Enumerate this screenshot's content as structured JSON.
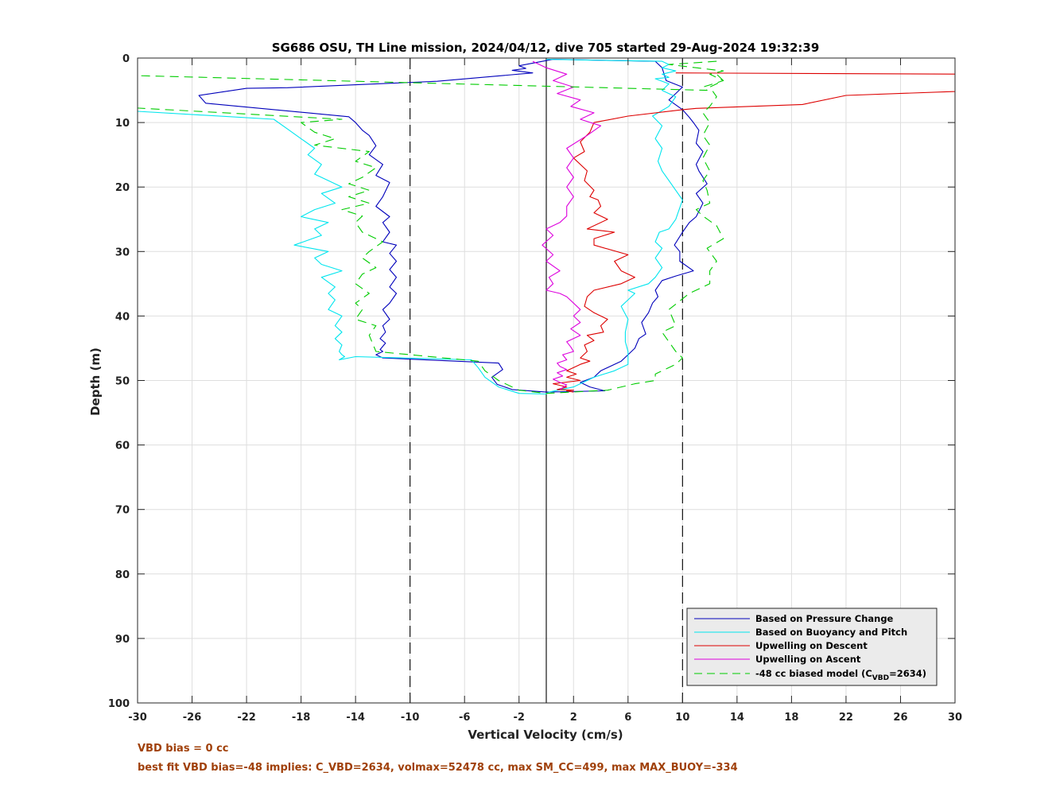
{
  "notes": {
    "line1": "VBD bias = 0 cc",
    "line2": "best fit VBD bias=-48 implies: C_VBD=2634, volmax=52478 cc, max SM_CC=499, max MAX_BUOY=-334"
  },
  "colors": {
    "note": "#a0400a"
  },
  "chart_data": {
    "type": "line",
    "title": "SG686 OSU, TH Line mission, 2024/04/12, dive 705 started 29-Aug-2024 19:32:39",
    "xlabel": "Vertical Velocity (cm/s)",
    "ylabel": "Depth (m)",
    "xlim": [
      -30,
      30
    ],
    "ylim": [
      0,
      100
    ],
    "y_reversed": true,
    "grid": true,
    "xticks": [
      -30,
      -26,
      -22,
      -18,
      -14,
      -10,
      -6,
      -2,
      2,
      6,
      10,
      14,
      18,
      22,
      26,
      30
    ],
    "yticks": [
      0,
      10,
      20,
      30,
      40,
      50,
      60,
      70,
      80,
      90,
      100
    ],
    "reference_lines": [
      {
        "x": -10,
        "style": "dashed",
        "color": "#000000"
      },
      {
        "x": 0,
        "style": "solid",
        "color": "#000000"
      },
      {
        "x": 10,
        "style": "dashed",
        "color": "#000000"
      }
    ],
    "legend": {
      "position": "bottom-right",
      "entries": [
        {
          "label": "Based on Pressure Change",
          "color": "#0000bb",
          "style": "solid"
        },
        {
          "label": "Based on Buoyancy and Pitch",
          "color": "#00e5ee",
          "style": "solid"
        },
        {
          "label": "Upwelling on Descent",
          "color": "#dd0000",
          "style": "solid"
        },
        {
          "label": "Upwelling on Ascent",
          "color": "#dd00dd",
          "style": "solid"
        },
        {
          "label_main": "-48 cc biased model (C",
          "label_sub": "VBD",
          "label_end": "=2634)",
          "color": "#00cc00",
          "style": "dashed"
        }
      ]
    },
    "series": [
      {
        "name": "Based on Pressure Change",
        "color": "#0000bb",
        "dash": false,
        "x": [
          0.5,
          -2.0,
          -1.5,
          -2.5,
          -1.0,
          -8.0,
          -19.0,
          -22.0,
          -25.5,
          -25.0,
          -14.5,
          -14.0,
          -13.5,
          -13.0,
          -12.5,
          -13.0,
          -12.0,
          -12.5,
          -11.5,
          -12.0,
          -12.5,
          -11.5,
          -12.0,
          -11.5,
          -12.0,
          -11.0,
          -11.5,
          -11.0,
          -11.5,
          -11.0,
          -11.5,
          -11.0,
          -11.5,
          -12.0,
          -11.5,
          -12.0,
          -11.8,
          -12.2,
          -11.8,
          -12.2,
          -12.0,
          -12.5,
          -12.0,
          -3.5,
          -3.2,
          -4.0,
          -3.6,
          -2.5,
          0.0,
          4.3,
          3.2,
          2.5,
          3.5,
          4.0,
          5.5,
          6.0,
          6.5,
          6.8,
          7.3,
          7.0,
          7.5,
          7.8,
          8.2,
          8.0,
          8.5,
          9.5,
          10.8,
          9.8,
          9.8,
          9.4,
          10.0,
          10.5,
          11.0,
          11.5,
          11.0,
          11.8,
          11.2,
          11.0,
          11.5,
          11.0,
          11.2,
          10.8,
          10.5,
          10.0,
          9.0,
          9.5,
          10.0,
          8.8,
          8.5,
          8.0,
          0.5
        ],
        "y": [
          0.2,
          1.2,
          1.6,
          1.9,
          2.3,
          3.6,
          4.6,
          4.7,
          5.8,
          7.0,
          9.1,
          10.0,
          11.2,
          12.0,
          13.6,
          15.0,
          16.5,
          18.2,
          19.3,
          21.5,
          23.0,
          24.6,
          25.5,
          27.0,
          28.5,
          29.0,
          30.3,
          31.5,
          32.8,
          34.0,
          35.5,
          36.5,
          38.0,
          39.0,
          40.5,
          41.5,
          42.5,
          43.5,
          44.2,
          45.2,
          45.5,
          46.0,
          46.5,
          47.3,
          48.3,
          49.5,
          50.6,
          51.4,
          51.8,
          51.6,
          51.0,
          50.3,
          49.5,
          48.5,
          47.0,
          46.0,
          45.0,
          43.5,
          42.8,
          41.0,
          39.5,
          38.0,
          37.0,
          36.0,
          34.5,
          33.8,
          33.0,
          31.5,
          30.0,
          29.0,
          27.0,
          25.5,
          24.6,
          22.5,
          21.0,
          19.5,
          17.5,
          16.5,
          14.5,
          13.2,
          11.2,
          10.0,
          9.2,
          8.0,
          6.5,
          5.5,
          4.5,
          3.5,
          1.5,
          0.5,
          0.2
        ]
      },
      {
        "name": "Based on Buoyancy and Pitch",
        "color": "#00e5ee",
        "dash": false,
        "x": [
          -30,
          -30.5,
          -30.5,
          -30.5,
          -20.0,
          -19.0,
          -18.0,
          -17.0,
          -17.5,
          -16.5,
          -17.0,
          -16.0,
          -15.0,
          -16.5,
          -15.5,
          -17.0,
          -18.0,
          -16.0,
          -17.0,
          -16.5,
          -18.5,
          -16.0,
          -17.0,
          -16.5,
          -15.0,
          -16.5,
          -15.5,
          -16.0,
          -15.5,
          -16.0,
          -15.0,
          -15.5,
          -15.0,
          -15.5,
          -15.0,
          -15.2,
          -15.0,
          -14.8,
          -15.2,
          -14.0,
          -5.5,
          -5.0,
          -4.5,
          -3.5,
          -2.0,
          0.0,
          0.2,
          2.0,
          3.5,
          5.0,
          6.0,
          6.0,
          5.8,
          5.8,
          6.0,
          5.5,
          6.5,
          6.0,
          7.5,
          8.0,
          8.5,
          8.0,
          8.5,
          8.0,
          8.3,
          9.0,
          9.5,
          10.0,
          9.5,
          9.0,
          8.5,
          8.2,
          8.5,
          8.0,
          8.5,
          7.8,
          9.0,
          9.5,
          8.5,
          9.0,
          8.0,
          9.0,
          8.5,
          9.5,
          8.5,
          9.0,
          8.5,
          0.0
        ],
        "y": [
          2.5,
          2.8,
          8.0,
          8.2,
          9.5,
          11.0,
          12.5,
          14.0,
          15.0,
          16.5,
          18.0,
          19.0,
          20.0,
          21.0,
          22.5,
          23.5,
          24.6,
          25.5,
          26.5,
          27.5,
          29.0,
          30.0,
          31.0,
          32.0,
          33.0,
          34.0,
          35.5,
          36.5,
          37.5,
          39.0,
          40.0,
          41.5,
          42.5,
          43.5,
          44.5,
          45.5,
          46.0,
          46.3,
          46.8,
          46.3,
          46.8,
          48.0,
          49.5,
          51.0,
          52.0,
          52.1,
          51.8,
          51.0,
          49.5,
          48.5,
          47.5,
          45.5,
          44.0,
          42.5,
          40.5,
          38.5,
          36.5,
          36.0,
          35.0,
          34.0,
          32.5,
          31.0,
          29.5,
          28.5,
          27.0,
          26.5,
          25.0,
          22.0,
          20.5,
          19.0,
          17.5,
          16.0,
          14.0,
          12.5,
          10.5,
          9.0,
          7.5,
          6.0,
          5.0,
          4.0,
          3.2,
          3.0,
          2.5,
          2.0,
          1.5,
          1.0,
          0.5,
          0.2
        ]
      },
      {
        "name": "Upwelling on Descent",
        "color": "#dd0000",
        "dash": false,
        "x": [
          9.5,
          31.0,
          35.0,
          22.0,
          18.8,
          11.0,
          10.0,
          6.0,
          3.5,
          3.2,
          2.5,
          2.8,
          2.0,
          3.0,
          2.8,
          3.5,
          3.2,
          3.8,
          4.0,
          3.5,
          4.5,
          3.0,
          5.0,
          3.5,
          3.5,
          6.0,
          5.0,
          5.5,
          6.5,
          5.5,
          3.5,
          3.0,
          2.8,
          3.5,
          4.5,
          4.0,
          4.2,
          3.0,
          3.5,
          2.8,
          3.0,
          2.5,
          3.2,
          2.5,
          2.0,
          1.5,
          2.2,
          1.5,
          2.5,
          0.5,
          1.5,
          1.2,
          0.8,
          2.0,
          1.5,
          2.0
        ],
        "y": [
          2.3,
          2.5,
          4.8,
          5.8,
          7.2,
          7.8,
          8.0,
          9.0,
          10.0,
          11.5,
          13.0,
          14.5,
          15.5,
          17.5,
          19.0,
          20.5,
          21.5,
          22.0,
          23.0,
          24.0,
          25.0,
          26.5,
          27.0,
          28.0,
          29.0,
          30.5,
          31.5,
          33.0,
          34.0,
          35.0,
          36.0,
          37.0,
          38.5,
          39.5,
          40.5,
          41.5,
          42.5,
          43.0,
          43.8,
          44.5,
          45.5,
          46.5,
          47.0,
          47.5,
          48.0,
          48.5,
          49.0,
          49.5,
          50.0,
          50.5,
          51.0,
          51.2,
          51.4,
          51.5,
          51.6,
          51.8
        ]
      },
      {
        "name": "Upwelling on Ascent",
        "color": "#dd00dd",
        "dash": false,
        "x": [
          -1.0,
          0.0,
          1.5,
          0.5,
          2.0,
          0.8,
          2.5,
          1.8,
          3.5,
          2.5,
          4.0,
          3.0,
          1.5,
          2.0,
          1.5,
          2.0,
          1.5,
          2.0,
          1.5,
          1.5,
          1.0,
          0.0,
          0.5,
          -0.3,
          0.5,
          0.0,
          1.0,
          0.2,
          0.5,
          0.0,
          1.0,
          1.5,
          2.0,
          2.5,
          2.0,
          2.5,
          1.8,
          2.5,
          1.5,
          1.8,
          2.0,
          1.2,
          1.5,
          0.8,
          1.0,
          1.5,
          0.8,
          1.2,
          0.5,
          1.0,
          1.5,
          1.2,
          1.0
        ],
        "y": [
          0.5,
          1.5,
          2.5,
          3.5,
          4.5,
          5.5,
          6.5,
          7.5,
          8.5,
          9.5,
          10.5,
          12.0,
          14.0,
          15.5,
          17.0,
          18.5,
          20.0,
          21.5,
          23.0,
          24.5,
          25.5,
          26.5,
          27.5,
          29.0,
          30.5,
          31.5,
          33.0,
          34.0,
          35.0,
          36.0,
          36.5,
          37.0,
          38.0,
          39.0,
          40.0,
          41.0,
          42.0,
          43.0,
          44.0,
          44.8,
          45.5,
          46.0,
          46.8,
          47.3,
          47.8,
          48.3,
          48.8,
          49.3,
          49.8,
          50.3,
          50.7,
          51.1,
          51.4
        ]
      },
      {
        "name": "-48 cc biased model (CVBD=2634)",
        "color": "#00cc00",
        "dash": true,
        "x": [
          12.5,
          9.0,
          11.0,
          13.0,
          12.0,
          13.0,
          11.5,
          11.8,
          -30.5,
          -30.5,
          -15.0,
          -18.0,
          -17.0,
          -15.5,
          -17.0,
          -13.0,
          -14.0,
          -12.5,
          -13.5,
          -14.5,
          -13.0,
          -14.5,
          -13.0,
          -15.0,
          -13.5,
          -14.0,
          -13.5,
          -12.0,
          -13.0,
          -13.5,
          -12.5,
          -13.5,
          -14.0,
          -13.0,
          -14.0,
          -13.5,
          -14.0,
          -12.5,
          -13.0,
          -12.5,
          -5.0,
          -4.5,
          -3.5,
          -2.0,
          0.0,
          4.5,
          6.5,
          8.0,
          8.0,
          9.5,
          10.0,
          9.5,
          9.0,
          8.5,
          9.5,
          9.0,
          10.5,
          12.0,
          12.0,
          12.5,
          11.8,
          13.0,
          12.5,
          11.5,
          11.0,
          12.0,
          11.8,
          11.5,
          12.0,
          11.5,
          12.0,
          11.5,
          12.0,
          11.5,
          12.0,
          12.5,
          12.0,
          13.0,
          12.5
        ],
        "y": [
          0.5,
          1.0,
          1.5,
          2.0,
          2.5,
          3.5,
          4.5,
          5.0,
          2.7,
          7.7,
          9.5,
          10.0,
          11.5,
          12.5,
          13.5,
          14.5,
          16.0,
          17.0,
          18.5,
          19.5,
          20.5,
          21.5,
          22.5,
          23.5,
          24.5,
          25.5,
          27.0,
          28.5,
          30.0,
          31.0,
          32.5,
          33.5,
          35.0,
          36.5,
          38.0,
          39.0,
          40.5,
          41.5,
          43.0,
          45.5,
          47.0,
          48.5,
          50.0,
          51.5,
          52.0,
          51.5,
          50.5,
          50.0,
          49.0,
          47.5,
          46.5,
          45.5,
          44.0,
          42.5,
          41.5,
          39.0,
          36.5,
          35.0,
          33.0,
          31.5,
          29.5,
          28.0,
          26.0,
          24.5,
          23.5,
          22.5,
          20.5,
          19.0,
          17.5,
          15.5,
          13.5,
          12.0,
          10.0,
          8.5,
          7.5,
          6.0,
          4.5,
          3.5,
          2.5
        ]
      }
    ]
  }
}
